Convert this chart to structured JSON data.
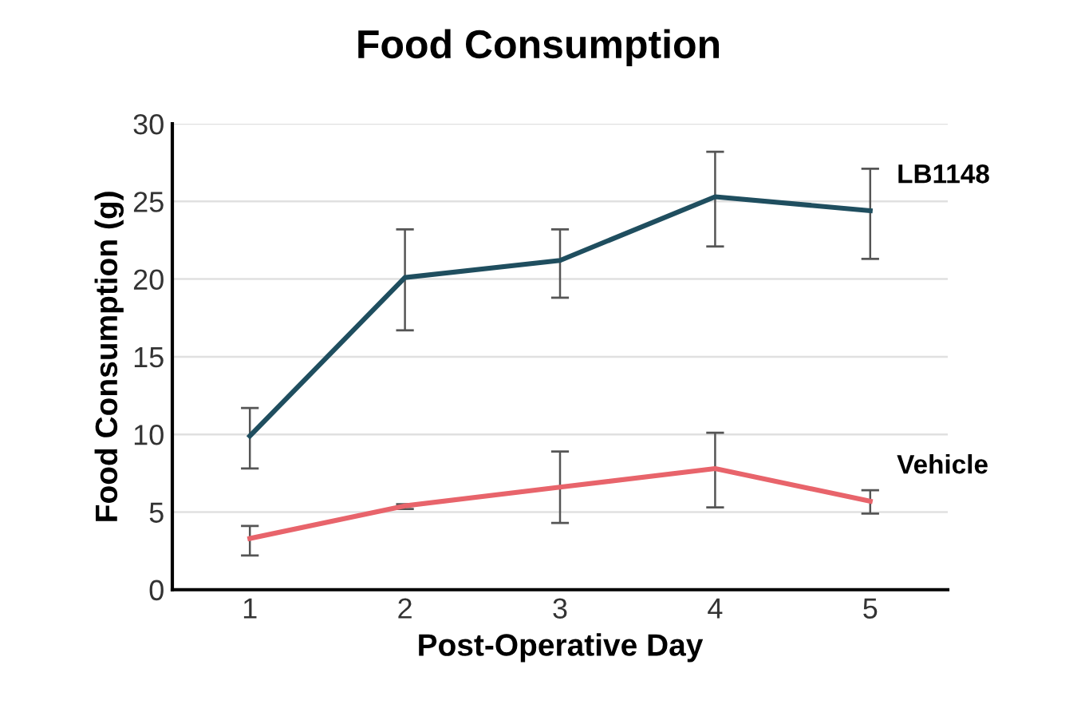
{
  "chart_data": {
    "type": "line",
    "title": "Food Consumption",
    "xlabel": "Post-Operative Day",
    "ylabel": "Food Consumption (g)",
    "categories": [
      "1",
      "2",
      "3",
      "4",
      "5"
    ],
    "series": [
      {
        "name": "LB1148",
        "color": "#1f4e5f",
        "values": [
          9.9,
          20.1,
          21.2,
          25.3,
          24.4
        ],
        "errors": [
          [
            7.8,
            11.7
          ],
          [
            16.7,
            23.2
          ],
          [
            18.8,
            23.2
          ],
          [
            22.1,
            28.2
          ],
          [
            21.3,
            27.1
          ]
        ]
      },
      {
        "name": "Vehicle",
        "color": "#e8646b",
        "values": [
          3.3,
          5.4,
          6.6,
          7.8,
          5.7
        ],
        "errors": [
          [
            2.2,
            4.1
          ],
          [
            5.2,
            5.5
          ],
          [
            4.3,
            8.9
          ],
          [
            5.3,
            10.1
          ],
          [
            4.9,
            6.4
          ]
        ]
      }
    ],
    "ylim": [
      0,
      30
    ],
    "yticks": [
      0,
      5,
      10,
      15,
      20,
      25,
      30
    ],
    "grid": "y",
    "legend": false,
    "marker": "none",
    "line_style": "solid"
  }
}
